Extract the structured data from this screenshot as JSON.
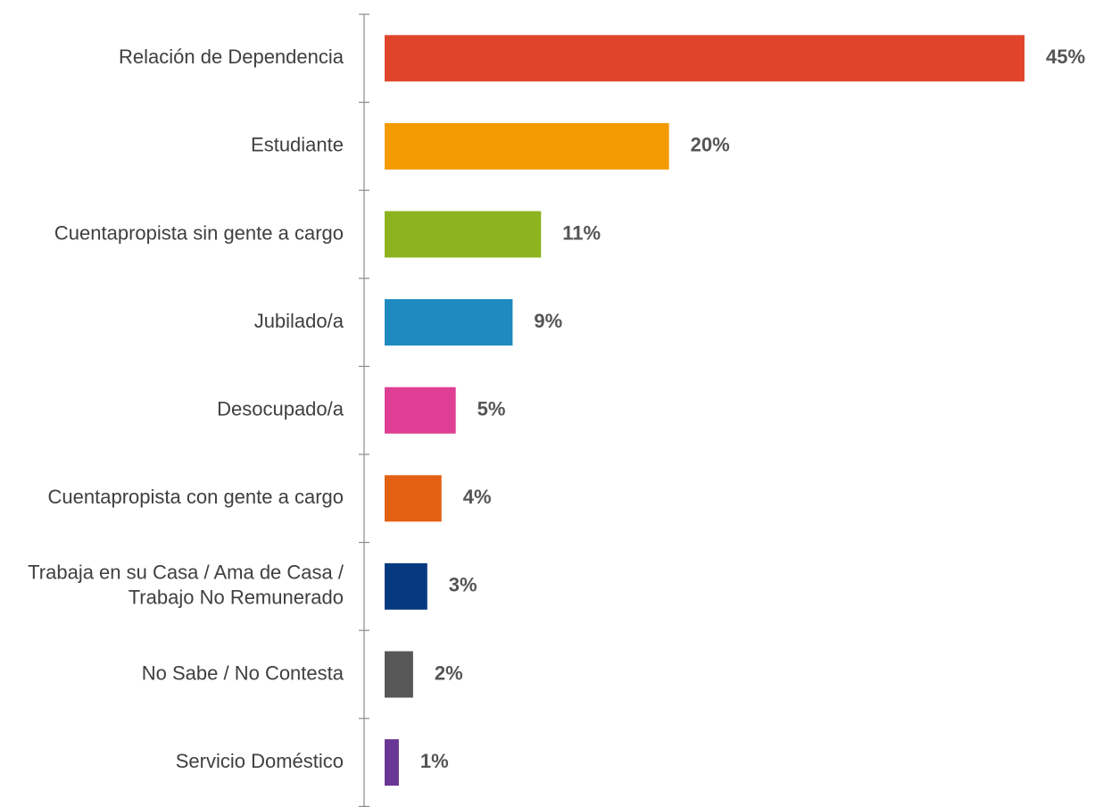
{
  "chart_data": {
    "type": "bar",
    "orientation": "horizontal",
    "title": "",
    "xlabel": "",
    "ylabel": "",
    "xlim": [
      0,
      45
    ],
    "grid": false,
    "legend": "none",
    "categories": [
      [
        "Relación de Dependencia"
      ],
      [
        "Estudiante"
      ],
      [
        "Cuentapropista sin gente a cargo"
      ],
      [
        "Jubilado/a"
      ],
      [
        "Desocupado/a"
      ],
      [
        "Cuentapropista con gente a cargo"
      ],
      [
        "Trabaja en su Casa / Ama de Casa /",
        "Trabajo No Remunerado"
      ],
      [
        "No Sabe / No Contesta"
      ],
      [
        "Servicio Doméstico"
      ]
    ],
    "values": [
      45,
      20,
      11,
      9,
      5,
      4,
      3,
      2,
      1
    ],
    "value_labels": [
      "45%",
      "20%",
      "11%",
      "9%",
      "5%",
      "4%",
      "3%",
      "2%",
      "1%"
    ],
    "colors": [
      "#e0452b",
      "#f39b00",
      "#8db31f",
      "#1f8ac0",
      "#de3e93",
      "#e35f12",
      "#063a80",
      "#575757",
      "#6a3695"
    ]
  }
}
